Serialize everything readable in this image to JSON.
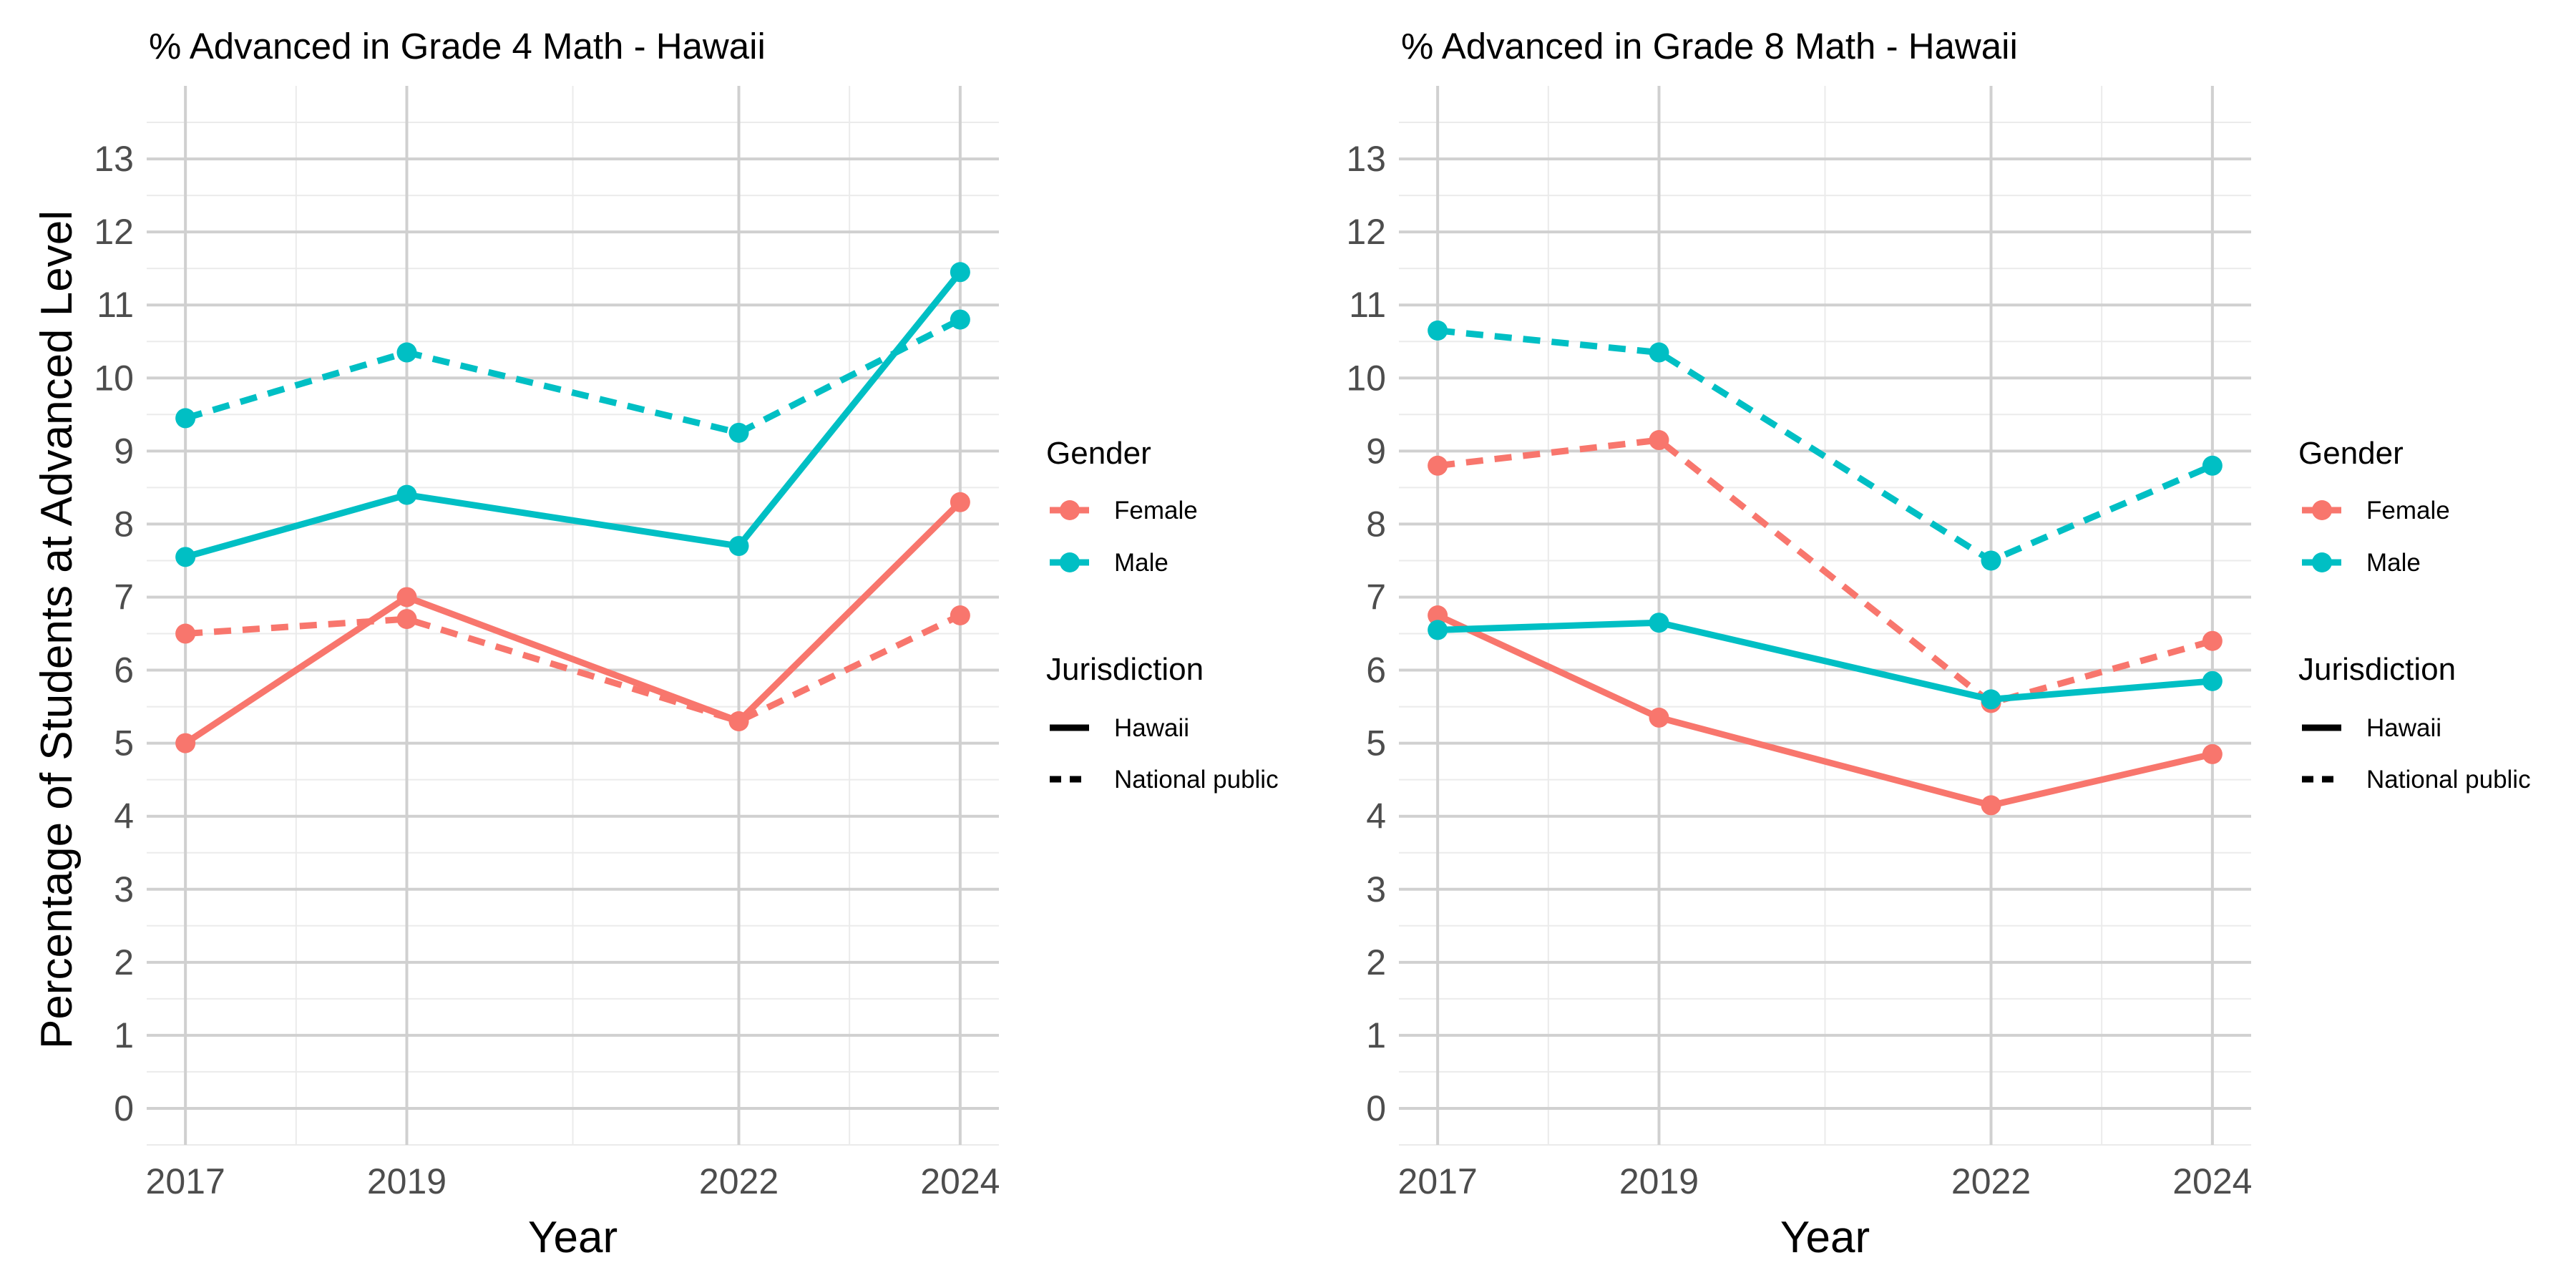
{
  "figure": {
    "ylabel": "Percentage of Students at Advanced Level",
    "colors": {
      "Female": "#F8766D",
      "Male": "#00BFC4"
    }
  },
  "chart_data": [
    {
      "type": "line",
      "title": "% Advanced in Grade 4 Math - Hawaii",
      "xlabel": "Year",
      "ylabel": "Percentage of Students at Advanced Level",
      "x": [
        2017,
        2019,
        2022,
        2024
      ],
      "xlim": [
        2016.65,
        2024.35
      ],
      "ylim": [
        -0.5,
        14
      ],
      "y_ticks": [
        0,
        1,
        2,
        3,
        4,
        5,
        6,
        7,
        8,
        9,
        10,
        11,
        12,
        13
      ],
      "grid": true,
      "series": [
        {
          "gender": "Female",
          "jurisdiction": "Hawaii",
          "color": "#F8766D",
          "dash": "solid",
          "values": [
            5.0,
            7.0,
            5.3,
            8.3
          ]
        },
        {
          "gender": "Female",
          "jurisdiction": "National public",
          "color": "#F8766D",
          "dash": "dashed",
          "values": [
            6.5,
            6.7,
            5.3,
            6.75
          ]
        },
        {
          "gender": "Male",
          "jurisdiction": "Hawaii",
          "color": "#00BFC4",
          "dash": "solid",
          "values": [
            7.55,
            8.4,
            7.7,
            11.45
          ]
        },
        {
          "gender": "Male",
          "jurisdiction": "National public",
          "color": "#00BFC4",
          "dash": "dashed",
          "values": [
            9.45,
            10.35,
            9.25,
            10.8
          ]
        }
      ],
      "legend": {
        "placement": "right",
        "gender_title": "Gender",
        "gender_items": [
          {
            "label": "Female",
            "color": "#F8766D"
          },
          {
            "label": "Male",
            "color": "#00BFC4"
          }
        ],
        "jurisdiction_title": "Jurisdiction",
        "jurisdiction_items": [
          {
            "label": "Hawaii",
            "dash": "solid"
          },
          {
            "label": "National public",
            "dash": "dashed"
          }
        ]
      }
    },
    {
      "type": "line",
      "title": "% Advanced in Grade 8 Math - Hawaii",
      "xlabel": "Year",
      "ylabel": "",
      "x": [
        2017,
        2019,
        2022,
        2024
      ],
      "xlim": [
        2016.65,
        2024.35
      ],
      "ylim": [
        -0.5,
        14
      ],
      "y_ticks": [
        0,
        1,
        2,
        3,
        4,
        5,
        6,
        7,
        8,
        9,
        10,
        11,
        12,
        13
      ],
      "grid": true,
      "series": [
        {
          "gender": "Female",
          "jurisdiction": "Hawaii",
          "color": "#F8766D",
          "dash": "solid",
          "values": [
            6.75,
            5.35,
            4.15,
            4.85
          ]
        },
        {
          "gender": "Female",
          "jurisdiction": "National public",
          "color": "#F8766D",
          "dash": "dashed",
          "values": [
            8.8,
            9.15,
            5.55,
            6.4
          ]
        },
        {
          "gender": "Male",
          "jurisdiction": "Hawaii",
          "color": "#00BFC4",
          "dash": "solid",
          "values": [
            6.55,
            6.65,
            5.6,
            5.85
          ]
        },
        {
          "gender": "Male",
          "jurisdiction": "National public",
          "color": "#00BFC4",
          "dash": "dashed",
          "values": [
            10.65,
            10.35,
            7.5,
            8.8
          ]
        }
      ],
      "legend": {
        "placement": "right",
        "gender_title": "Gender",
        "gender_items": [
          {
            "label": "Female",
            "color": "#F8766D"
          },
          {
            "label": "Male",
            "color": "#00BFC4"
          }
        ],
        "jurisdiction_title": "Jurisdiction",
        "jurisdiction_items": [
          {
            "label": "Hawaii",
            "dash": "solid"
          },
          {
            "label": "National public",
            "dash": "dashed"
          }
        ]
      }
    }
  ]
}
